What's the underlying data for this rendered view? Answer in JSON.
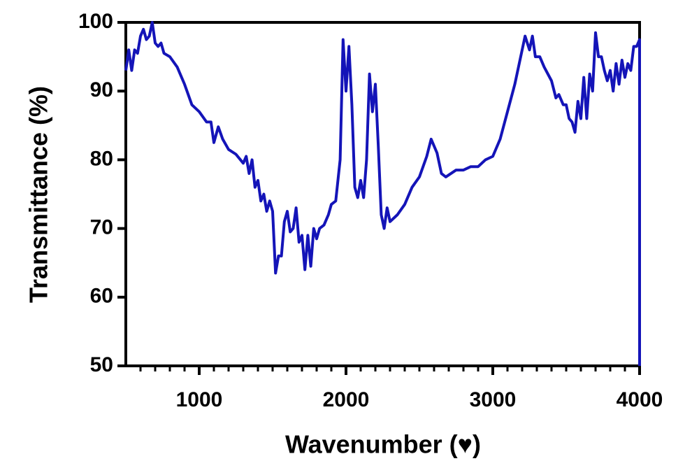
{
  "chart_data": {
    "type": "line",
    "xlabel": "Wavenumber (♥)",
    "ylabel": "Transmittance (%)",
    "xlim": [
      500,
      4000
    ],
    "ylim": [
      50,
      100
    ],
    "xticks": [
      1000,
      2000,
      3000,
      4000
    ],
    "xminorticks": [
      600,
      700,
      800,
      900,
      1100,
      1200,
      1300,
      1400,
      1500,
      1600,
      1700,
      1800,
      1900,
      2100,
      2200,
      2300,
      2400,
      2500,
      2600,
      2700,
      2800,
      2900,
      3100,
      3200,
      3300,
      3400,
      3500,
      3600,
      3700,
      3800,
      3900
    ],
    "yticks": [
      50,
      60,
      70,
      80,
      90,
      100
    ],
    "series": [
      {
        "color": "#1414b8",
        "x": [
          500,
          520,
          540,
          560,
          580,
          600,
          620,
          640,
          660,
          680,
          700,
          720,
          740,
          760,
          800,
          850,
          900,
          950,
          1000,
          1050,
          1080,
          1100,
          1130,
          1160,
          1200,
          1250,
          1300,
          1320,
          1340,
          1360,
          1380,
          1400,
          1420,
          1440,
          1460,
          1480,
          1500,
          1520,
          1540,
          1560,
          1580,
          1600,
          1620,
          1640,
          1660,
          1680,
          1700,
          1720,
          1740,
          1760,
          1780,
          1800,
          1820,
          1850,
          1880,
          1900,
          1930,
          1960,
          1980,
          2000,
          2020,
          2040,
          2060,
          2080,
          2100,
          2120,
          2140,
          2160,
          2180,
          2200,
          2220,
          2240,
          2260,
          2280,
          2300,
          2350,
          2400,
          2450,
          2500,
          2550,
          2580,
          2620,
          2650,
          2680,
          2750,
          2800,
          2850,
          2900,
          2950,
          3000,
          3050,
          3100,
          3150,
          3200,
          3220,
          3250,
          3270,
          3290,
          3320,
          3350,
          3400,
          3430,
          3450,
          3480,
          3500,
          3520,
          3540,
          3560,
          3580,
          3600,
          3620,
          3640,
          3660,
          3680,
          3700,
          3720,
          3740,
          3760,
          3780,
          3800,
          3820,
          3840,
          3860,
          3880,
          3900,
          3920,
          3940,
          3960,
          3980,
          4000,
          4000
        ],
        "values": [
          93,
          96,
          93,
          96,
          95.5,
          98,
          99,
          97.5,
          98,
          100,
          97,
          96.5,
          97,
          95.5,
          95,
          93.5,
          91,
          88,
          87,
          85.5,
          85.5,
          82.5,
          84.8,
          83,
          81.5,
          80.8,
          79.5,
          80.5,
          78,
          80,
          76,
          77,
          74,
          75,
          72.5,
          74,
          72.5,
          63.5,
          66,
          66,
          71,
          72.5,
          69.5,
          70,
          73,
          68,
          69,
          64,
          69,
          64.5,
          70,
          68.5,
          70,
          70.5,
          72,
          73.5,
          74,
          80,
          97.5,
          90,
          96.5,
          88,
          76,
          74.5,
          77,
          74.5,
          80,
          92.5,
          87,
          91,
          82,
          72,
          70,
          73,
          71,
          72,
          73.5,
          76,
          77.5,
          80.5,
          83,
          81,
          78,
          77.5,
          78.5,
          78.5,
          79,
          79,
          80,
          80.5,
          83,
          87,
          91,
          96,
          98,
          96,
          98,
          95,
          95,
          93.5,
          91.5,
          89,
          89.5,
          88,
          88,
          86,
          85.5,
          84,
          88.5,
          86,
          92,
          86,
          92.5,
          90,
          98.5,
          95,
          95,
          93,
          91.5,
          93,
          90,
          94,
          91,
          94.5,
          92,
          94,
          93,
          96.5,
          96.5,
          97.5,
          50
        ]
      }
    ]
  }
}
